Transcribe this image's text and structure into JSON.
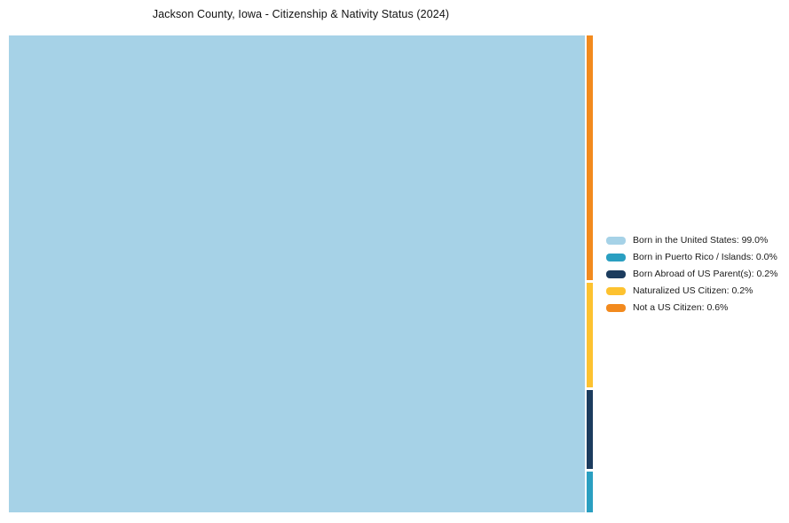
{
  "chart_data": {
    "type": "treemap",
    "title": "Jackson County, Iowa - Citizenship & Nativity Status (2024)",
    "unit": "%",
    "legend_position": "right",
    "series": [
      {
        "name": "Born in the United States",
        "value": 99.0,
        "color": "#a6d2e7"
      },
      {
        "name": "Born in Puerto Rico / Islands",
        "value": 0.0,
        "color": "#2a9fc1"
      },
      {
        "name": "Born Abroad of US Parent(s)",
        "value": 0.2,
        "color": "#1c3c5e"
      },
      {
        "name": "Naturalized US Citizen",
        "value": 0.2,
        "color": "#fdc230"
      },
      {
        "name": "Not a US Citizen",
        "value": 0.6,
        "color": "#f28a1e"
      }
    ],
    "legend_labels": [
      "Born in the United States: 99.0%",
      "Born in Puerto Rico / Islands: 0.0%",
      "Born Abroad of US Parent(s): 0.2%",
      "Naturalized US Citizen: 0.2%",
      "Not a US Citizen: 0.6%"
    ]
  }
}
